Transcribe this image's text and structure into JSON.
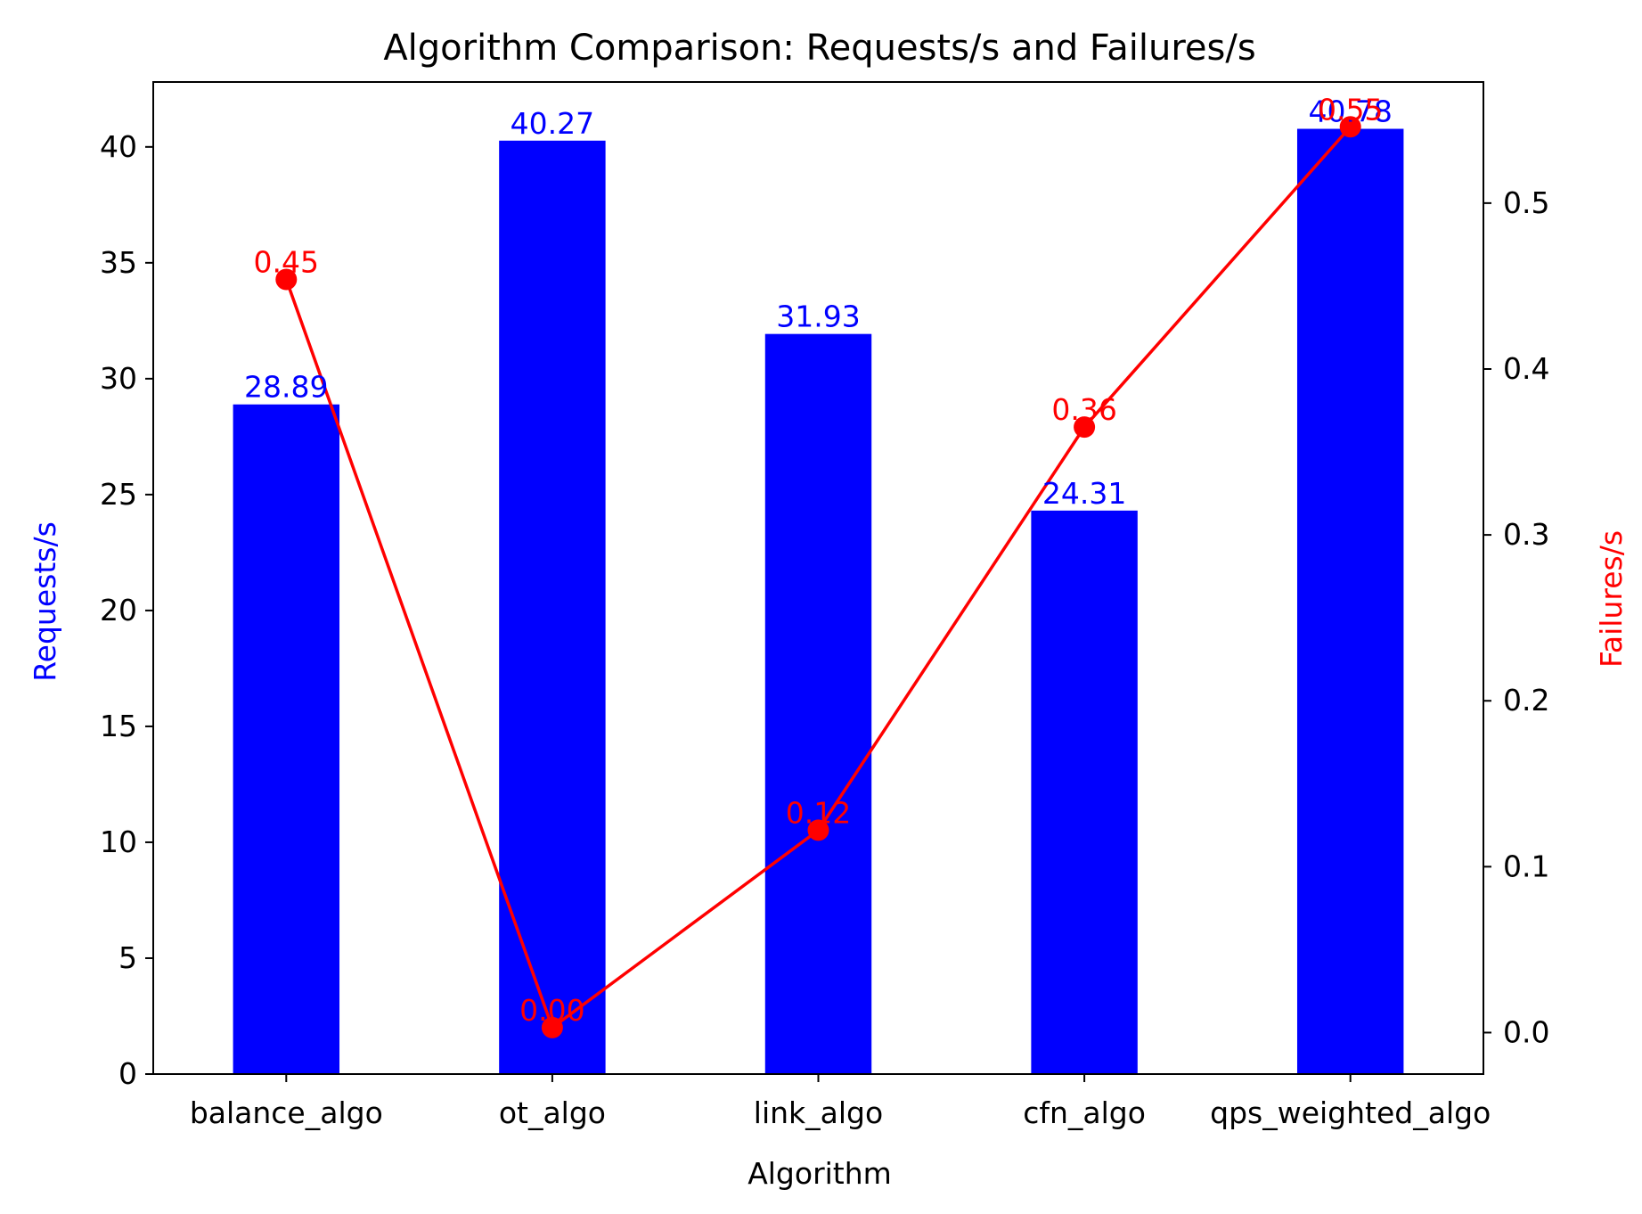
{
  "chart_data": {
    "type": "bar",
    "title": "Algorithm Comparison: Requests/s and Failures/s",
    "xlabel": "Algorithm",
    "ylabel": "Requests/s",
    "ylabel_right": "Failures/s",
    "categories": [
      "balance_algo",
      "ot_algo",
      "link_algo",
      "cfn_algo",
      "qps_weighted_algo"
    ],
    "series": [
      {
        "name": "Requests/s",
        "type": "bar",
        "axis": "left",
        "color": "#0000ff",
        "values": [
          28.89,
          40.27,
          31.93,
          24.31,
          40.78
        ],
        "labels": [
          "28.89",
          "40.27",
          "31.93",
          "24.31",
          "40.78"
        ]
      },
      {
        "name": "Failures/s",
        "type": "line",
        "axis": "right",
        "color": "#ff0000",
        "values": [
          0.454,
          0.003,
          0.122,
          0.365,
          0.546
        ],
        "labels": [
          "0.45",
          "0.00",
          "0.12",
          "0.36",
          "0.55"
        ]
      }
    ],
    "ylim": [
      0,
      42.8
    ],
    "ylim_right": [
      -0.025,
      0.573
    ],
    "yticks": [
      0,
      5,
      10,
      15,
      20,
      25,
      30,
      35,
      40
    ],
    "yticks_right": [
      0.0,
      0.1,
      0.2,
      0.3,
      0.4,
      0.5
    ],
    "ytick_labels_right": [
      "0.0",
      "0.1",
      "0.2",
      "0.3",
      "0.4",
      "0.5"
    ],
    "grid": false,
    "legend": false
  }
}
